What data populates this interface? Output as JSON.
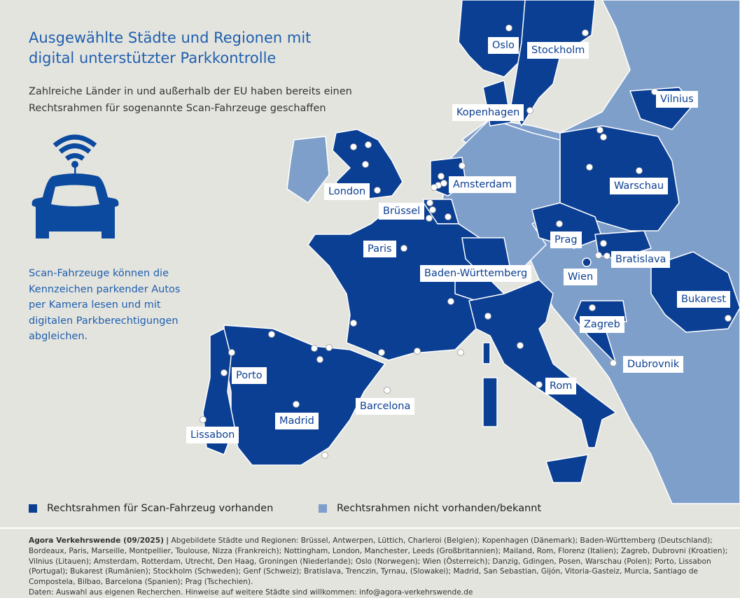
{
  "colors": {
    "background": "#e4e4df",
    "framework_present": "#0a3f94",
    "framework_absent": "#7f9fcb",
    "text_blue": "#1f5fae"
  },
  "header": {
    "title": "Ausgewählte Städte und Regionen mit digital unterstützter Parkkontrolle",
    "subtitle": "Zahlreiche Länder in und außerhalb der EU haben bereits einen Rechtsrahmen für sogenannte Scan-Fahrzeuge geschaffen"
  },
  "icon": "scan-car-wifi-icon",
  "description": "Scan-Fahrzeuge können die Kennzeichen parkender Autos per Kamera lesen und mit digitalen Parkberechtigungen abgleichen.",
  "map_labels": [
    "Oslo",
    "Stockholm",
    "Kopenhagen",
    "Vilnius",
    "London",
    "Amsterdam",
    "Brüssel",
    "Warschau",
    "Paris",
    "Prag",
    "Bratislava",
    "Baden-Württemberg",
    "Wien",
    "Bukarest",
    "Zagreb",
    "Dubrovnik",
    "Rom",
    "Porto",
    "Barcelona",
    "Madrid",
    "Lissabon"
  ],
  "legend": [
    {
      "label": "Rechtsrahmen für Scan-Fahrzeug vorhanden",
      "color": "#0a3f94"
    },
    {
      "label": "Rechtsrahmen nicht vorhanden/bekannt",
      "color": "#7f9fcb"
    }
  ],
  "footer": {
    "source": "Agora Verkehrswende (09/2025)",
    "separator": "|",
    "text": "Abgebildete Städte und Regionen: Brüssel, Antwerpen, Lüttich, Charleroi (Belgien); Kopenhagen (Dänemark); Baden-Württemberg (Deutschland); Bordeaux, Paris, Marseille, Montpellier, Toulouse, Nizza (Frankreich); Nottingham, London, Manchester, Leeds (Großbritannien); Mailand, Rom, Florenz (Italien); Zagreb, Dubrovni (Kroatien); Vilnius (Litauen); Amsterdam, Rotterdam, Utrecht, Den Haag, Groningen (Niederlande); Oslo (Norwegen); Wien (Österreich); Danzig, Gdingen, Posen, Warschau (Polen); Porto, Lissabon (Portugal); Bukarest (Rumänien); Stockholm (Schweden); Genf (Schweiz); Bratislava, Trenczin, Tyrnau, (Slowakei); Madrid, San Sebastian, Gijón, Vitoria-Gasteiz, Murcia, Santiago de Compostela, Bilbao, Barcelona (Spanien); Prag (Tschechien).",
    "note": "Daten: Auswahl aus eigenen Recherchen. Hinweise auf weitere Städte sind willkommen: info@agora-verkehrswende.de"
  }
}
